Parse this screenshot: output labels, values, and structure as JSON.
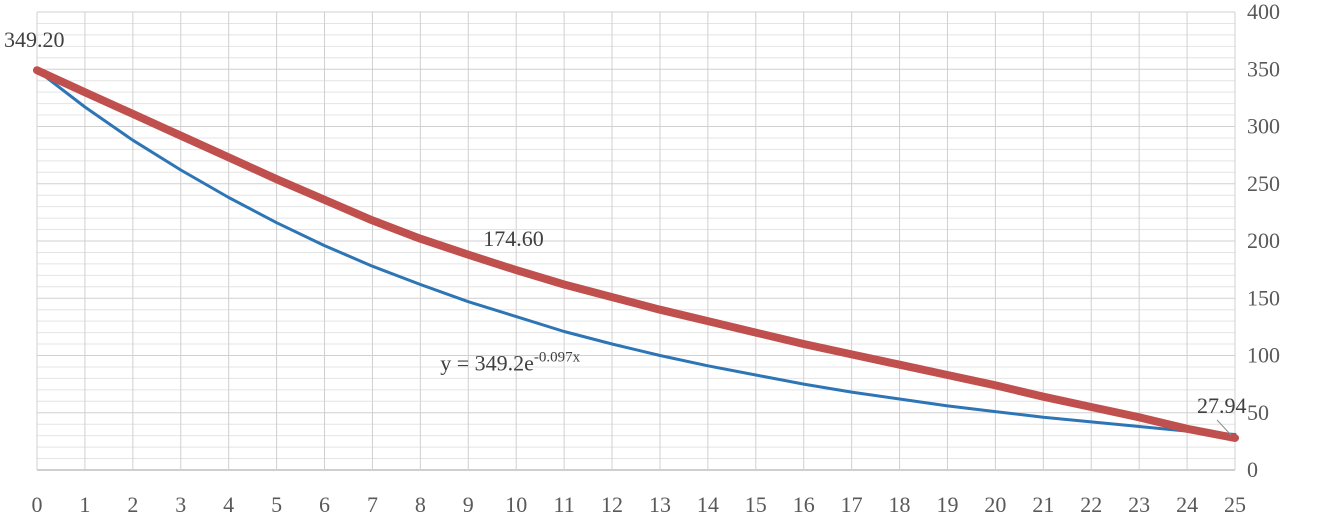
{
  "chart_data": {
    "type": "line",
    "x": {
      "min": 0,
      "max": 25,
      "ticks": [
        0,
        1,
        2,
        3,
        4,
        5,
        6,
        7,
        8,
        9,
        10,
        11,
        12,
        13,
        14,
        15,
        16,
        17,
        18,
        19,
        20,
        21,
        22,
        23,
        24,
        25
      ],
      "tick_labels": [
        "0",
        "1",
        "2",
        "3",
        "4",
        "5",
        "6",
        "7",
        "8",
        "9",
        "10",
        "11",
        "12",
        "13",
        "14",
        "15",
        "16",
        "17",
        "18",
        "19",
        "20",
        "21",
        "22",
        "23",
        "24",
        "25"
      ]
    },
    "y": {
      "min": 0,
      "max": 400,
      "ticks": [
        0,
        50,
        100,
        150,
        200,
        250,
        300,
        350,
        400
      ],
      "tick_labels": [
        "0",
        "50",
        "100",
        "150",
        "200",
        "250",
        "300",
        "350",
        "400"
      ],
      "position": "right",
      "minor_gridlines_every": 10
    },
    "grid": true,
    "series": [
      {
        "color": "#C0504D",
        "style": "thick",
        "x": [
          0,
          1,
          2,
          3,
          4,
          5,
          6,
          7,
          8,
          9,
          10,
          11,
          12,
          13,
          14,
          15,
          16,
          17,
          18,
          19,
          20,
          21,
          22,
          23,
          24,
          25
        ],
        "y": [
          349.2,
          330,
          311,
          292,
          273,
          254,
          236,
          218,
          202,
          188,
          174.6,
          162,
          151,
          140,
          130,
          120,
          110,
          101,
          92,
          83,
          74,
          64,
          55,
          46,
          36,
          27.94
        ]
      },
      {
        "color": "#2E75B6",
        "style": "thin",
        "x": [
          0,
          1,
          2,
          3,
          4,
          5,
          6,
          7,
          8,
          9,
          10,
          11,
          12,
          13,
          14,
          15,
          16,
          17,
          18,
          19,
          20,
          21,
          22,
          23,
          24,
          25
        ],
        "y": [
          349.2,
          317,
          288,
          262,
          238,
          216,
          196,
          178,
          162,
          147,
          134,
          121,
          110,
          100,
          91,
          83,
          75,
          68,
          62,
          56,
          51,
          46,
          42,
          38,
          34,
          31
        ]
      }
    ],
    "data_labels": [
      {
        "text": "349.20",
        "x": 0,
        "y": 349.2
      },
      {
        "text": "174.60",
        "x": 10,
        "y": 174.6
      },
      {
        "text": "27.94",
        "x": 25,
        "y": 27.94
      }
    ],
    "trendline_label": {
      "base": "y = 349.2e",
      "exponent": "-0.097x",
      "x": 10,
      "y": 100
    }
  }
}
